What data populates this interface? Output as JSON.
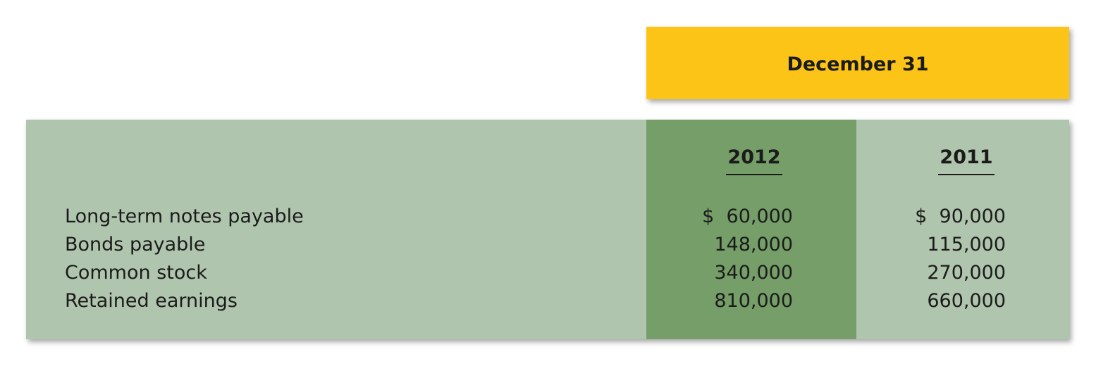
{
  "header": {
    "title": "December 31"
  },
  "table": {
    "columns": [
      "2012",
      "2011"
    ],
    "rows": [
      {
        "label": "Long-term notes payable",
        "v2012": "$  60,000",
        "v2011": "$  90,000"
      },
      {
        "label": "Bonds payable",
        "v2012": "148,000",
        "v2011": "115,000"
      },
      {
        "label": "Common stock",
        "v2012": "340,000",
        "v2011": "270,000"
      },
      {
        "label": "Retained earnings",
        "v2012": "810,000",
        "v2011": "660,000"
      }
    ]
  },
  "colors": {
    "header_band": "#fdc418",
    "panel": "#b0c5ae",
    "highlight_column": "#759e68"
  }
}
